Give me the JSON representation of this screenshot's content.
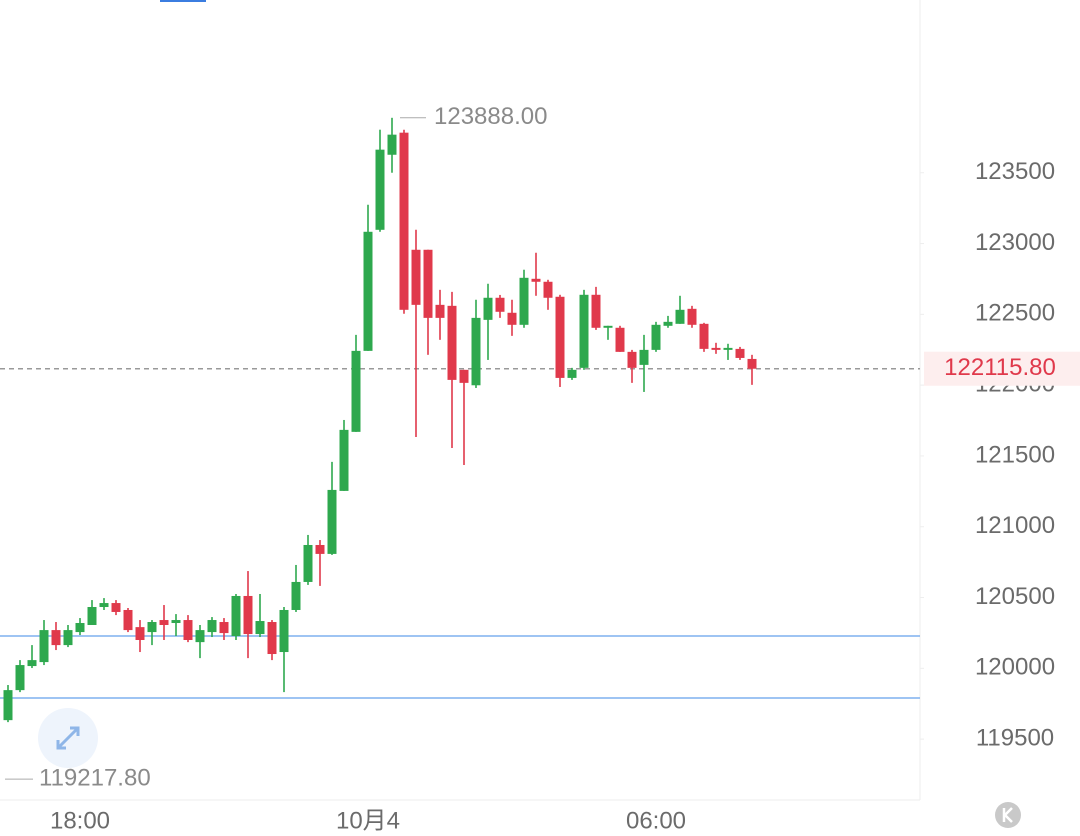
{
  "chart_data": {
    "type": "candlestick",
    "categories": [
      null,
      null,
      null,
      null,
      null,
      null,
      "18:00",
      null,
      null,
      null,
      null,
      null,
      null,
      null,
      null,
      null,
      null,
      null,
      null,
      null,
      null,
      null,
      null,
      null,
      null,
      null,
      null,
      null,
      null,
      null,
      "10月4",
      null,
      null,
      null,
      null,
      null,
      null,
      null,
      null,
      null,
      null,
      null,
      null,
      null,
      null,
      null,
      null,
      null,
      null,
      null,
      null,
      null,
      null,
      null,
      "06:00",
      null,
      null,
      null,
      null,
      null,
      null,
      null,
      null
    ],
    "open": [
      119634,
      119846,
      120016,
      120044,
      120270,
      120164,
      120256,
      120306,
      120433,
      120461,
      120412,
      120291,
      120256,
      120341,
      120320,
      120341,
      120185,
      120256,
      120327,
      120228,
      120511,
      120242,
      120327,
      120115,
      120412,
      120610,
      120871,
      120808,
      121253,
      121670,
      122242,
      123097,
      123627,
      123783,
      122956,
      122956,
      122567,
      122560,
      122108,
      121999,
      122461,
      122617,
      122511,
      122426,
      122751,
      122730,
      122624,
      122051,
      122122,
      122638,
      122405,
      122405,
      122235,
      122143,
      122249,
      122419,
      122433,
      122539,
      122433,
      122263,
      122249,
      122256,
      122185
    ],
    "high": [
      119882,
      120058,
      120164,
      120341,
      120327,
      120306,
      120355,
      120482,
      120496,
      120482,
      120426,
      120341,
      120341,
      120447,
      120383,
      120376,
      120306,
      120362,
      120355,
      120525,
      120687,
      120525,
      120341,
      120433,
      120730,
      120942,
      120906,
      121458,
      121754,
      122355,
      123274,
      123804,
      123888,
      123804,
      123097,
      122956,
      122673,
      122659,
      122108,
      122603,
      122716,
      122637,
      122603,
      122815,
      122935,
      122744,
      122638,
      122122,
      122673,
      122694,
      122419,
      122419,
      122249,
      122355,
      122447,
      122489,
      122631,
      122560,
      122440,
      122299,
      122292,
      122270,
      122214
    ],
    "low": [
      119620,
      119832,
      120002,
      120023,
      120129,
      120150,
      120235,
      120306,
      120412,
      120376,
      120256,
      120115,
      120164,
      120200,
      120228,
      120185,
      120072,
      120221,
      120200,
      120200,
      120072,
      120221,
      120058,
      119832,
      120398,
      120589,
      120582,
      120801,
      121253,
      121670,
      122242,
      123083,
      123500,
      122504,
      121634,
      122214,
      122320,
      121556,
      121436,
      121980,
      122178,
      122475,
      122348,
      122405,
      122631,
      122532,
      121987,
      122037,
      122108,
      122390,
      122320,
      122235,
      122016,
      121952,
      122235,
      122405,
      122433,
      122405,
      122235,
      122221,
      122178,
      122178,
      122002
    ],
    "close": [
      119846,
      120023,
      120058,
      120270,
      120164,
      120270,
      120320,
      120433,
      120461,
      120398,
      120270,
      120200,
      120327,
      120306,
      120341,
      120200,
      120270,
      120341,
      120249,
      120511,
      120242,
      120334,
      120101,
      120412,
      120610,
      120871,
      120808,
      121260,
      121684,
      122242,
      123083,
      123663,
      123769,
      122532,
      122567,
      122475,
      122475,
      122037,
      122016,
      122475,
      122617,
      122518,
      122426,
      122758,
      122730,
      122617,
      122051,
      122108,
      122638,
      122405,
      122419,
      122235,
      122122,
      122249,
      122426,
      122447,
      122532,
      122426,
      122256,
      122249,
      122263,
      122192,
      122115.8
    ],
    "up_color": "#2ea84e",
    "down_color": "#e0394b",
    "ylim": [
      119070,
      124720
    ],
    "yticks": [
      119500,
      120000,
      120500,
      121000,
      121500,
      122000,
      122500,
      123000,
      123500
    ],
    "hlines": [
      120228,
      119790
    ],
    "hline_color": "#7fb1ef",
    "last_price": {
      "value": 122115.8,
      "label": "122115.80"
    },
    "max_label": {
      "value": 123888,
      "label": "123888.00"
    },
    "min_label": {
      "value": 119217.8,
      "label": "119217.80"
    }
  }
}
